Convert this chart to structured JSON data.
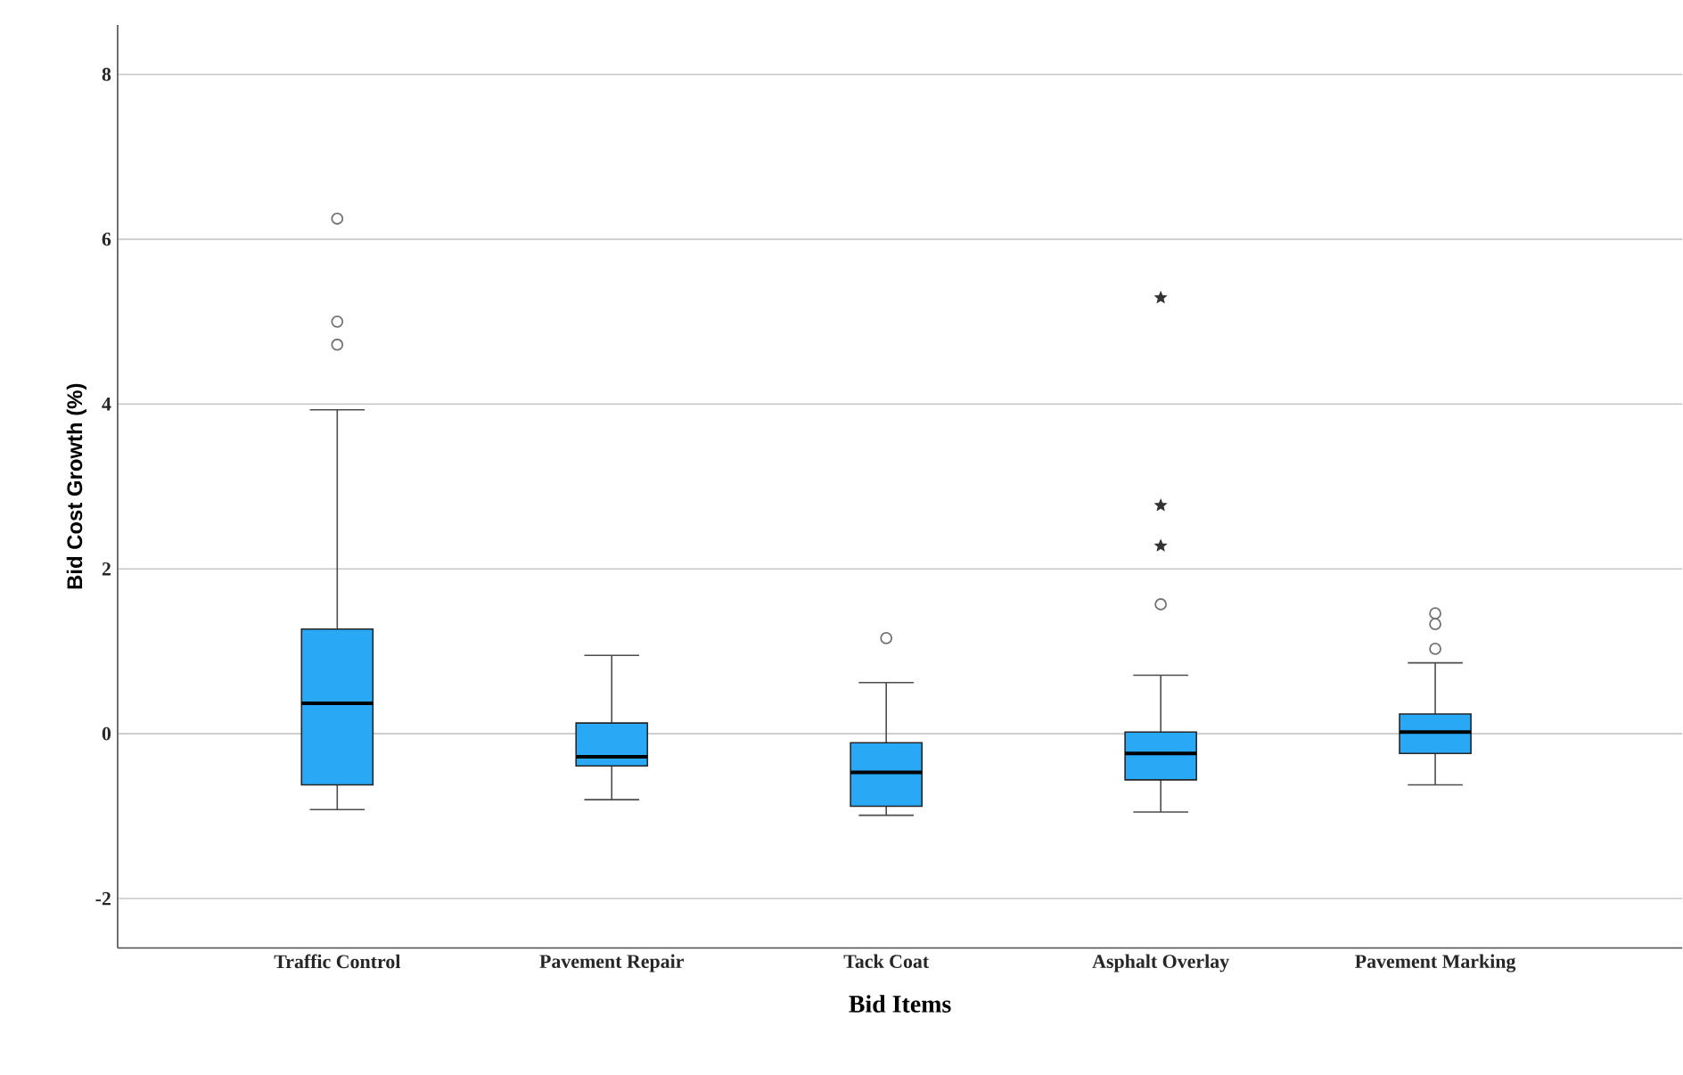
{
  "chart_data": {
    "type": "box",
    "xlabel": "Bid Items",
    "ylabel": "Bid Cost Growth (%)",
    "categories": [
      "Traffic Control",
      "Pavement Repair",
      "Tack Coat",
      "Asphalt Overlay",
      "Pavement Marking"
    ],
    "color": "#29a8f5",
    "boxes": [
      {
        "low": -0.92,
        "q1": -0.62,
        "median": 0.37,
        "q3": 1.27,
        "high": 3.93,
        "outliers": [
          4.72,
          5.0,
          6.25
        ]
      },
      {
        "low": -0.8,
        "q1": -0.39,
        "median": -0.28,
        "q3": 0.13,
        "high": 0.95
      },
      {
        "low": -0.99,
        "q1": -0.88,
        "median": -0.47,
        "q3": -0.11,
        "high": 0.62,
        "outliers": [
          1.16
        ]
      },
      {
        "low": -0.95,
        "q1": -0.56,
        "median": -0.24,
        "q3": 0.02,
        "high": 0.71,
        "outliers": [
          1.57
        ]
      },
      {
        "low": -0.62,
        "q1": -0.24,
        "median": 0.02,
        "q3": 0.24,
        "high": 0.86,
        "outliers": [
          1.03,
          1.33,
          1.46
        ]
      }
    ],
    "series": [
      {
        "type": "scatter",
        "x": [
          "Asphalt Overlay",
          "Asphalt Overlay",
          "Asphalt Overlay"
        ],
        "values": [
          2.28,
          2.77,
          5.29
        ],
        "marker": "star",
        "color": "#333333"
      }
    ],
    "ylim": [
      -2.6,
      8.6
    ],
    "yticks": [
      -2,
      0,
      2,
      4,
      6,
      8
    ],
    "grid": "y"
  }
}
